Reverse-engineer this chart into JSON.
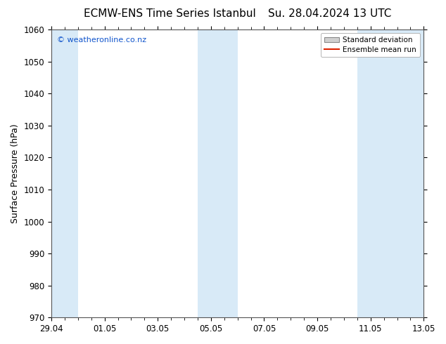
{
  "title_left": "ECMW-ENS Time Series Istanbul",
  "title_right": "Su. 28.04.2024 13 UTC",
  "ylabel": "Surface Pressure (hPa)",
  "ylim": [
    970,
    1060
  ],
  "yticks": [
    970,
    980,
    990,
    1000,
    1010,
    1020,
    1030,
    1040,
    1050,
    1060
  ],
  "xlim": [
    0,
    14
  ],
  "xtick_labels": [
    "29.04",
    "01.05",
    "03.05",
    "05.05",
    "07.05",
    "09.05",
    "11.05",
    "13.05"
  ],
  "xtick_positions": [
    0,
    2,
    4,
    6,
    8,
    10,
    12,
    14
  ],
  "shaded_bands": [
    {
      "x_start": 0,
      "x_end": 1.0,
      "color": "#d8eaf7"
    },
    {
      "x_start": 5.5,
      "x_end": 7.0,
      "color": "#d8eaf7"
    },
    {
      "x_start": 11.5,
      "x_end": 14.0,
      "color": "#d8eaf7"
    }
  ],
  "watermark_text": "© weatheronline.co.nz",
  "watermark_color": "#1155cc",
  "legend_std_color": "#d0d0d0",
  "legend_std_edge": "#888888",
  "legend_mean_color": "#dd2200",
  "background_color": "#ffffff",
  "plot_bg_color": "#ffffff",
  "spine_color": "#555555",
  "title_fontsize": 11,
  "label_fontsize": 9,
  "tick_fontsize": 8.5,
  "watermark_fontsize": 8
}
